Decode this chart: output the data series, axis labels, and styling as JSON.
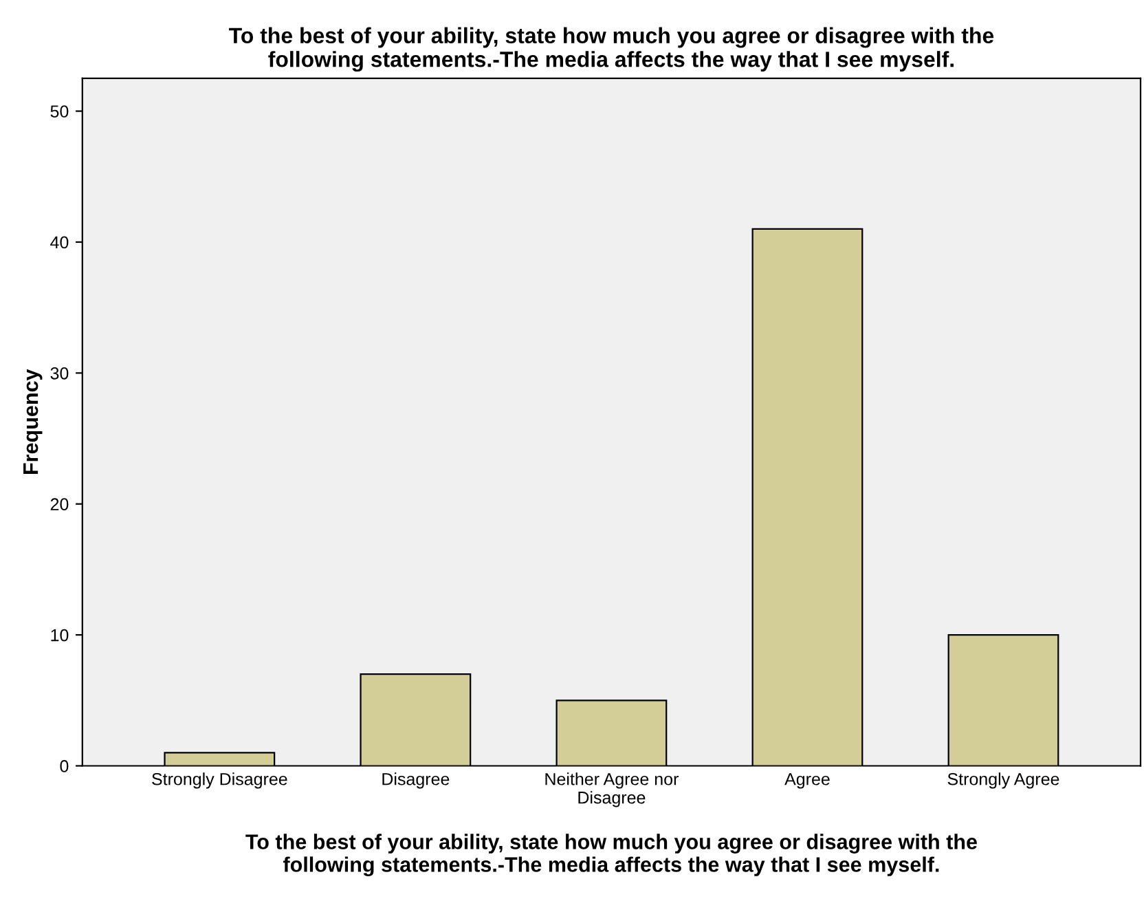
{
  "chart_data": {
    "type": "bar",
    "title": "To the best of your ability, state how much you agree or disagree with the\nfollowing statements.-The media affects the way that I see myself.",
    "xlabel": "To the best of your ability, state how much you agree or disagree with the\nfollowing statements.-The media affects the way that I see myself.",
    "ylabel": "Frequency",
    "categories": [
      "Strongly Disagree",
      "Disagree",
      "Neither Agree nor\nDisagree",
      "Agree",
      "Strongly Agree"
    ],
    "values": [
      1,
      7,
      5,
      41,
      10
    ],
    "color": "#d3ce97",
    "ylim": [
      0,
      52.5
    ],
    "yticks": [
      0,
      10,
      20,
      30,
      40,
      50
    ],
    "grid": false,
    "legend": false
  }
}
